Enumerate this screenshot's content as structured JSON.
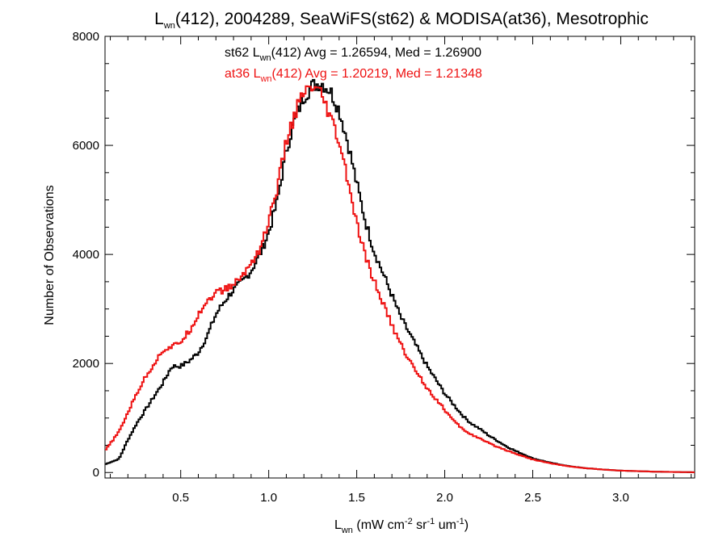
{
  "chart_data": {
    "type": "line",
    "title": {
      "symbol": "L",
      "subscript": "wn",
      "rest": "(412), 2004289, SeaWiFS(st62) & MODISA(at36), Mesotrophic"
    },
    "xlabel": {
      "symbol": "L",
      "subscript": "wn",
      "open": " (mW cm",
      "exp1": "-2",
      "mid": " sr",
      "exp2": "-1",
      "mid2": " um",
      "exp3": "-1",
      "close": ")"
    },
    "ylabel": "Number of Observations",
    "xlim": [
      0.07,
      3.42
    ],
    "ylim": [
      -100,
      8000
    ],
    "xticks": [
      "0.5",
      "1.0",
      "1.5",
      "2.0",
      "2.5",
      "3.0"
    ],
    "yticks": [
      "0",
      "2000",
      "4000",
      "6000",
      "8000"
    ],
    "grid": false,
    "annotations": [
      {
        "prefix": "st62 L",
        "sub": "wn",
        "suffix": "(412) Avg = 1.26594, Med = 1.26900",
        "color": "#000000"
      },
      {
        "prefix": "at36 L",
        "sub": "wn",
        "suffix": "(412) Avg = 1.20219, Med = 1.21348",
        "color": "#ee1111"
      }
    ],
    "series": [
      {
        "color": "#000000",
        "points": [
          [
            0.07,
            150
          ],
          [
            0.15,
            250
          ],
          [
            0.2,
            600
          ],
          [
            0.25,
            900
          ],
          [
            0.3,
            1150
          ],
          [
            0.35,
            1400
          ],
          [
            0.4,
            1650
          ],
          [
            0.45,
            1950
          ],
          [
            0.5,
            1950
          ],
          [
            0.55,
            2050
          ],
          [
            0.6,
            2200
          ],
          [
            0.65,
            2500
          ],
          [
            0.7,
            2900
          ],
          [
            0.75,
            3150
          ],
          [
            0.8,
            3350
          ],
          [
            0.85,
            3500
          ],
          [
            0.9,
            3700
          ],
          [
            0.95,
            4000
          ],
          [
            1.0,
            4400
          ],
          [
            1.05,
            5000
          ],
          [
            1.1,
            5900
          ],
          [
            1.15,
            6500
          ],
          [
            1.2,
            6900
          ],
          [
            1.25,
            7100
          ],
          [
            1.3,
            7150
          ],
          [
            1.35,
            7000
          ],
          [
            1.4,
            6650
          ],
          [
            1.45,
            6050
          ],
          [
            1.5,
            5300
          ],
          [
            1.55,
            4600
          ],
          [
            1.6,
            4050
          ],
          [
            1.65,
            3650
          ],
          [
            1.7,
            3250
          ],
          [
            1.75,
            2850
          ],
          [
            1.8,
            2550
          ],
          [
            1.85,
            2250
          ],
          [
            1.9,
            1950
          ],
          [
            1.95,
            1700
          ],
          [
            2.0,
            1450
          ],
          [
            2.05,
            1250
          ],
          [
            2.1,
            1050
          ],
          [
            2.15,
            900
          ],
          [
            2.2,
            800
          ],
          [
            2.25,
            680
          ],
          [
            2.3,
            580
          ],
          [
            2.35,
            480
          ],
          [
            2.4,
            400
          ],
          [
            2.5,
            260
          ],
          [
            2.6,
            180
          ],
          [
            2.7,
            120
          ],
          [
            2.8,
            80
          ],
          [
            2.9,
            55
          ],
          [
            3.0,
            35
          ],
          [
            3.2,
            15
          ],
          [
            3.42,
            5
          ]
        ]
      },
      {
        "color": "#ee1111",
        "points": [
          [
            0.07,
            400
          ],
          [
            0.15,
            750
          ],
          [
            0.2,
            1100
          ],
          [
            0.25,
            1450
          ],
          [
            0.3,
            1750
          ],
          [
            0.35,
            2000
          ],
          [
            0.4,
            2250
          ],
          [
            0.45,
            2300
          ],
          [
            0.5,
            2400
          ],
          [
            0.55,
            2600
          ],
          [
            0.6,
            2900
          ],
          [
            0.65,
            3150
          ],
          [
            0.7,
            3300
          ],
          [
            0.75,
            3350
          ],
          [
            0.8,
            3450
          ],
          [
            0.85,
            3600
          ],
          [
            0.9,
            3850
          ],
          [
            0.95,
            4100
          ],
          [
            1.0,
            4600
          ],
          [
            1.05,
            5250
          ],
          [
            1.1,
            6050
          ],
          [
            1.15,
            6600
          ],
          [
            1.2,
            6950
          ],
          [
            1.25,
            7050
          ],
          [
            1.3,
            6900
          ],
          [
            1.35,
            6500
          ],
          [
            1.4,
            6050
          ],
          [
            1.45,
            5350
          ],
          [
            1.5,
            4550
          ],
          [
            1.55,
            3950
          ],
          [
            1.6,
            3500
          ],
          [
            1.65,
            3100
          ],
          [
            1.7,
            2700
          ],
          [
            1.75,
            2350
          ],
          [
            1.8,
            2050
          ],
          [
            1.85,
            1800
          ],
          [
            1.9,
            1550
          ],
          [
            1.95,
            1350
          ],
          [
            2.0,
            1150
          ],
          [
            2.05,
            950
          ],
          [
            2.1,
            800
          ],
          [
            2.15,
            700
          ],
          [
            2.2,
            620
          ],
          [
            2.25,
            540
          ],
          [
            2.3,
            470
          ],
          [
            2.35,
            410
          ],
          [
            2.4,
            350
          ],
          [
            2.5,
            240
          ],
          [
            2.6,
            170
          ],
          [
            2.7,
            115
          ],
          [
            2.8,
            80
          ],
          [
            2.9,
            55
          ],
          [
            3.0,
            35
          ],
          [
            3.2,
            15
          ],
          [
            3.42,
            5
          ]
        ]
      }
    ]
  }
}
